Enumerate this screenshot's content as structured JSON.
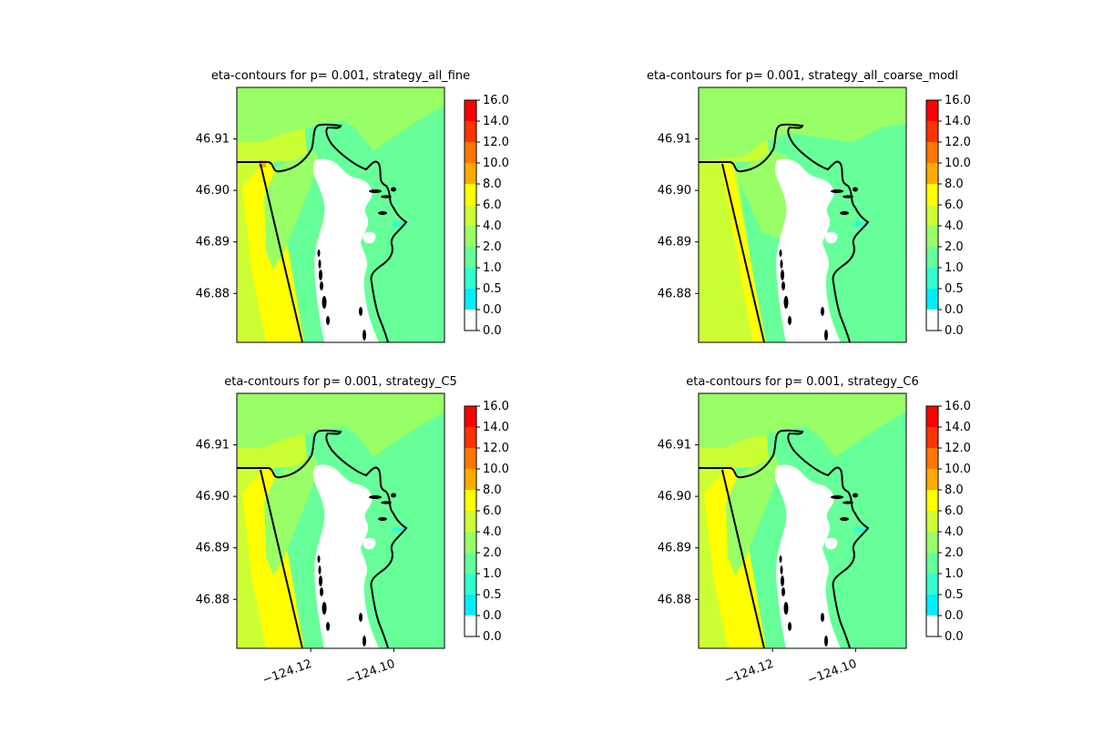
{
  "figure": {
    "background": "#ffffff"
  },
  "chart_data": [
    {
      "type": "heatmap",
      "title": "eta-contours for p= 0.001, strategy_all_fine",
      "ytick_labels": [
        "46.91",
        "46.90",
        "46.89",
        "46.88"
      ],
      "yticks": [
        46.91,
        46.9,
        46.89,
        46.88
      ],
      "xtick_labels": [],
      "colorbar_ticks": [
        "16.0",
        "14.0",
        "12.0",
        "10.0",
        "8.0",
        "6.0",
        "4.0",
        "2.0",
        "1.0",
        "0.5",
        "0.0",
        "0.0"
      ]
    },
    {
      "type": "heatmap",
      "title": "eta-contours for p= 0.001, strategy_all_coarse_modl",
      "ytick_labels": [
        "46.91",
        "46.90",
        "46.89",
        "46.88"
      ],
      "yticks": [
        46.91,
        46.9,
        46.89,
        46.88
      ],
      "xtick_labels": [],
      "colorbar_ticks": [
        "16.0",
        "14.0",
        "12.0",
        "10.0",
        "8.0",
        "6.0",
        "4.0",
        "2.0",
        "1.0",
        "0.5",
        "0.0",
        "0.0"
      ]
    },
    {
      "type": "heatmap",
      "title": "eta-contours for p= 0.001, strategy_C5",
      "ytick_labels": [
        "46.91",
        "46.90",
        "46.89",
        "46.88"
      ],
      "yticks": [
        46.91,
        46.9,
        46.89,
        46.88
      ],
      "xtick_labels": [
        "−124.12",
        "−124.10"
      ],
      "xticks": [
        -124.12,
        -124.1
      ],
      "colorbar_ticks": [
        "16.0",
        "14.0",
        "12.0",
        "10.0",
        "8.0",
        "6.0",
        "4.0",
        "2.0",
        "1.0",
        "0.5",
        "0.0",
        "0.0"
      ]
    },
    {
      "type": "heatmap",
      "title": "eta-contours for p= 0.001, strategy_C6",
      "ytick_labels": [
        "46.91",
        "46.90",
        "46.89",
        "46.88"
      ],
      "yticks": [
        46.91,
        46.9,
        46.89,
        46.88
      ],
      "xtick_labels": [
        "−124.12",
        "−124.10"
      ],
      "xticks": [
        -124.12,
        -124.1
      ],
      "colorbar_ticks": [
        "16.0",
        "14.0",
        "12.0",
        "10.0",
        "8.0",
        "6.0",
        "4.0",
        "2.0",
        "1.0",
        "0.5",
        "0.0",
        "0.0"
      ]
    }
  ],
  "colorbar": {
    "bands": [
      {
        "range": "14-16",
        "color": "#ff0000"
      },
      {
        "range": "12-14",
        "color": "#ff3300"
      },
      {
        "range": "10-12",
        "color": "#ff7700"
      },
      {
        "range": "8-10",
        "color": "#ffaa00"
      },
      {
        "range": "6-8",
        "color": "#ffff00"
      },
      {
        "range": "4-6",
        "color": "#ccff33"
      },
      {
        "range": "2-4",
        "color": "#99ff66"
      },
      {
        "range": "1-2",
        "color": "#66ff99"
      },
      {
        "range": "0.5-1",
        "color": "#33ffcc"
      },
      {
        "range": "0-0.5",
        "color": "#00eeff"
      },
      {
        "range": "0-0",
        "color": "#ffffff"
      }
    ]
  },
  "map": {
    "coastline_color": "#000000",
    "dry_land_color": "#ffffff",
    "region_colors": {
      "bay": "#66ff99",
      "ocean_far": "#ccff33",
      "ocean_surf": "#ffff00",
      "north": "#99ff66",
      "shallow": "#33ffcc",
      "high": "#ffaa00"
    }
  }
}
